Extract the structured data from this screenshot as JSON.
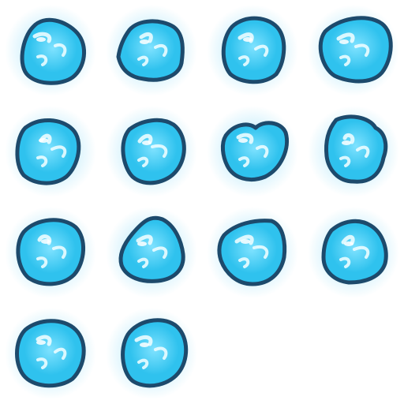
{
  "sprite_sheet": {
    "columns": 4,
    "rows": 4,
    "frame_count": 14,
    "frames": [
      {
        "name": "ice-blob-frame-1"
      },
      {
        "name": "ice-blob-frame-2"
      },
      {
        "name": "ice-blob-frame-3"
      },
      {
        "name": "ice-blob-frame-4"
      },
      {
        "name": "ice-blob-frame-5"
      },
      {
        "name": "ice-blob-frame-6"
      },
      {
        "name": "ice-blob-frame-7"
      },
      {
        "name": "ice-blob-frame-8"
      },
      {
        "name": "ice-blob-frame-9"
      },
      {
        "name": "ice-blob-frame-10"
      },
      {
        "name": "ice-blob-frame-11"
      },
      {
        "name": "ice-blob-frame-12"
      },
      {
        "name": "ice-blob-frame-13"
      },
      {
        "name": "ice-blob-frame-14"
      }
    ],
    "colors": {
      "background": "#ffffff",
      "glow": "#d8f3fc",
      "outline": "#1d4a6c",
      "fill_outer": "#2fc2ee",
      "fill_inner": "#7fe2ff",
      "highlight": "#eafcff"
    },
    "icon": "ice-crystal-icon"
  }
}
